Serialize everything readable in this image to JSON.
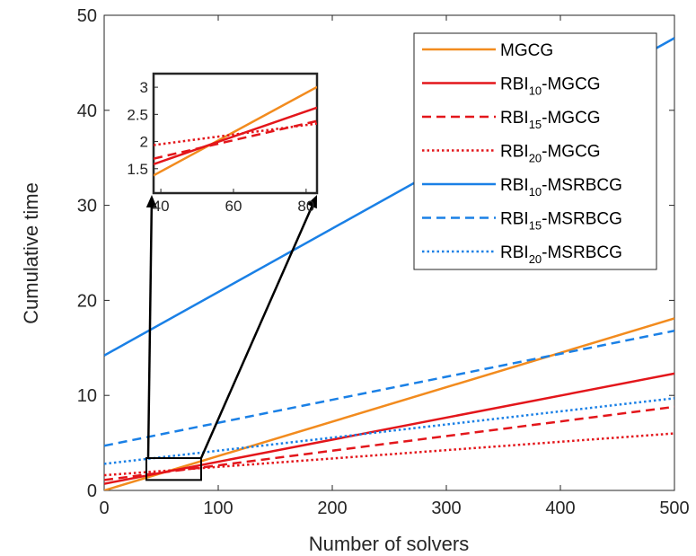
{
  "chart_data": {
    "type": "line",
    "title": "",
    "xlabel": "Number of solvers",
    "ylabel": "Cumulative time",
    "xlim": [
      0,
      500
    ],
    "ylim": [
      0,
      50
    ],
    "xticks": [
      "0",
      "100",
      "200",
      "300",
      "400",
      "500"
    ],
    "yticks": [
      "0",
      "10",
      "20",
      "30",
      "40",
      "50"
    ],
    "grid": false,
    "legend_position": "top-right",
    "series": [
      {
        "name": "MGCG",
        "base": "MGCG",
        "sub": "",
        "suffix": "",
        "color": "#f28b1e",
        "style": "solid",
        "x": [
          0,
          500
        ],
        "y": [
          0.0,
          18.1
        ]
      },
      {
        "name": "RBI10-MGCG",
        "base": "RBI",
        "sub": "10",
        "suffix": "-MGCG",
        "color": "#e3161b",
        "style": "solid",
        "x": [
          0,
          500
        ],
        "y": [
          0.7,
          12.3
        ]
      },
      {
        "name": "RBI15-MGCG",
        "base": "RBI",
        "sub": "15",
        "suffix": "-MGCG",
        "color": "#e3161b",
        "style": "dashed",
        "x": [
          0,
          500
        ],
        "y": [
          1.1,
          8.8
        ]
      },
      {
        "name": "RBI20-MGCG",
        "base": "RBI",
        "sub": "20",
        "suffix": "-MGCG",
        "color": "#e3161b",
        "style": "dotted",
        "x": [
          0,
          500
        ],
        "y": [
          1.6,
          6.0
        ]
      },
      {
        "name": "RBI10-MSRBCG",
        "base": "RBI",
        "sub": "10",
        "suffix": "-MSRBCG",
        "color": "#1a80e6",
        "style": "solid",
        "x": [
          0,
          500
        ],
        "y": [
          14.2,
          47.6
        ]
      },
      {
        "name": "RBI15-MSRBCG",
        "base": "RBI",
        "sub": "15",
        "suffix": "-MSRBCG",
        "color": "#1a80e6",
        "style": "dashed",
        "x": [
          0,
          500
        ],
        "y": [
          4.7,
          16.8
        ]
      },
      {
        "name": "RBI20-MSRBCG",
        "base": "RBI",
        "sub": "20",
        "suffix": "-MSRBCG",
        "color": "#1a80e6",
        "style": "dotted",
        "x": [
          0,
          500
        ],
        "y": [
          2.8,
          9.7
        ]
      }
    ],
    "inset": {
      "xlim": [
        38,
        83
      ],
      "ylim": [
        1.05,
        3.25
      ],
      "xticks": [
        "40",
        "60",
        "80"
      ],
      "yticks": [
        "1.5",
        "2",
        "2.5",
        "3"
      ],
      "series_shown": [
        "MGCG",
        "RBI10-MGCG",
        "RBI15-MGCG",
        "RBI20-MGCG"
      ],
      "zoom_region": {
        "x": [
          37,
          85
        ],
        "y": [
          1.1,
          3.4
        ]
      }
    }
  }
}
